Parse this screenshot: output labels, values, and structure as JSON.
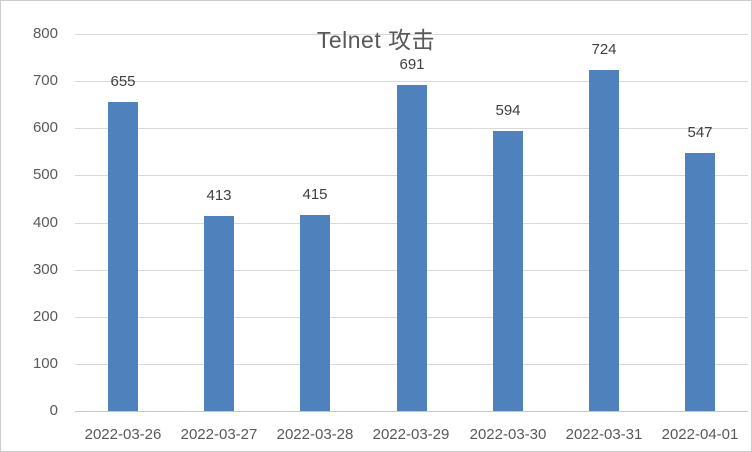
{
  "chart_data": {
    "type": "bar",
    "title": "Telnet 攻击",
    "categories": [
      "2022-03-26",
      "2022-03-27",
      "2022-03-28",
      "2022-03-29",
      "2022-03-30",
      "2022-03-31",
      "2022-04-01"
    ],
    "values": [
      655,
      413,
      415,
      691,
      594,
      724,
      547
    ],
    "ylim": [
      0,
      800
    ],
    "yticks": [
      0,
      100,
      200,
      300,
      400,
      500,
      600,
      700,
      800
    ],
    "grid": true,
    "legend": "none",
    "data_labels": true,
    "colors": {
      "bar": "#4f81bd",
      "gridline": "#d9d9d9",
      "axis_line": "#c6c6c6",
      "title_text": "#595959",
      "tick_text": "#595959",
      "value_label_text": "#404040",
      "background": "#ffffff",
      "border": "#cdcdcd"
    }
  }
}
